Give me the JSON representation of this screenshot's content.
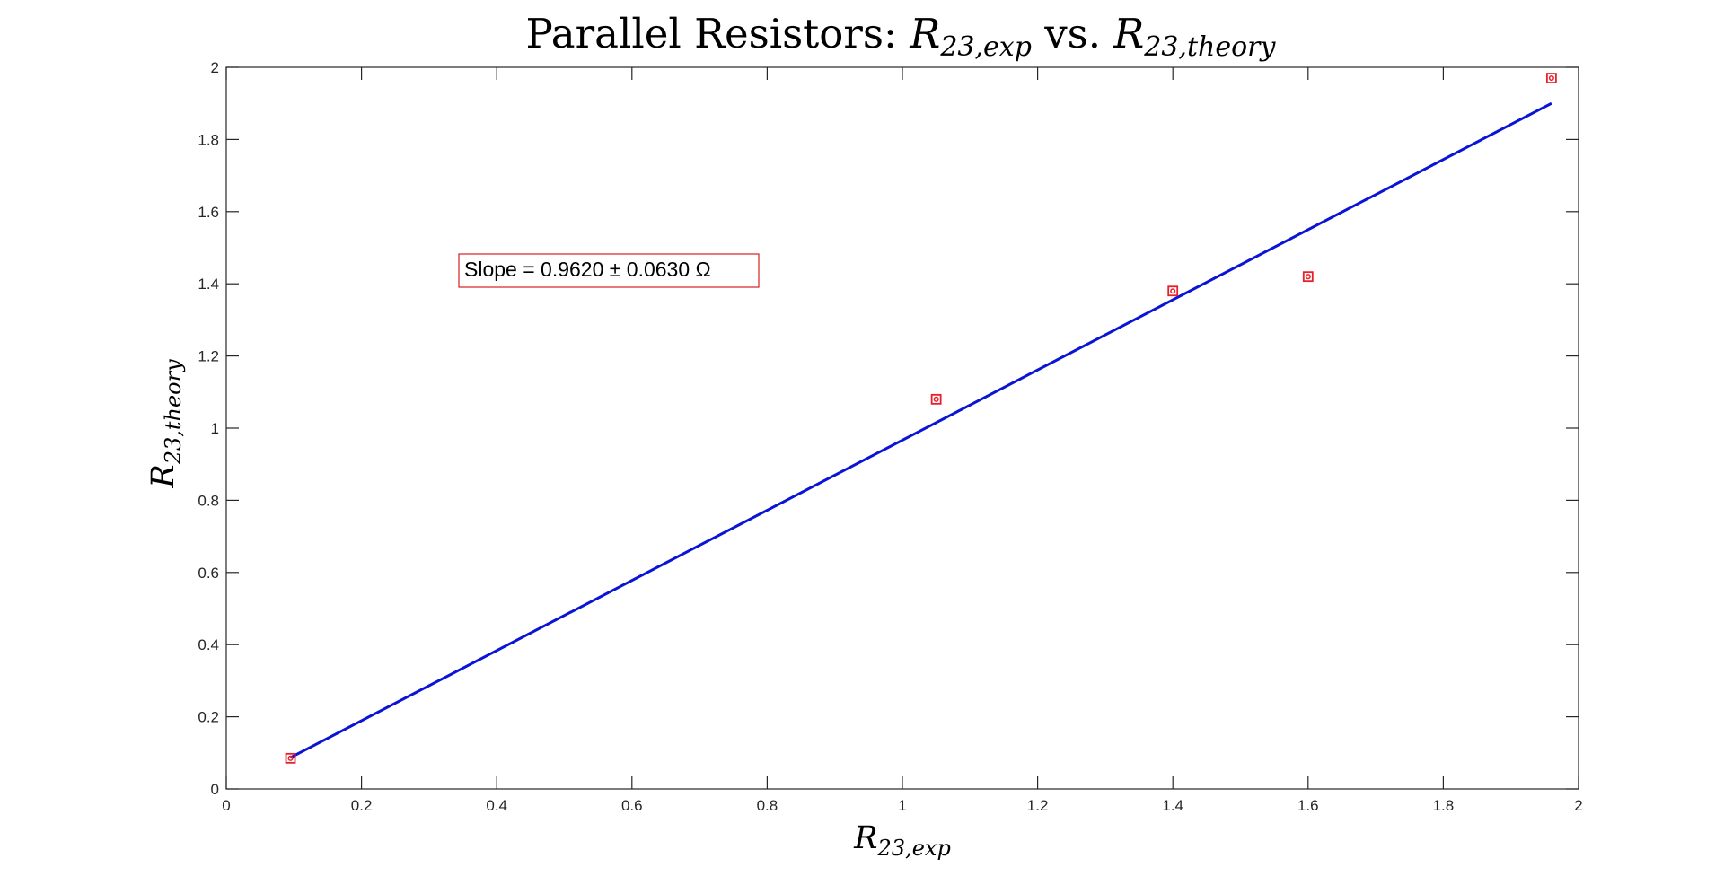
{
  "chart_data": {
    "type": "scatter",
    "title": {
      "prefix": "Parallel Resistors: ",
      "var1_base": "R",
      "var1_sub": "23,exp",
      "middle": " vs. ",
      "var2_base": "R",
      "var2_sub": "23,theory"
    },
    "xlabel": {
      "base": "R",
      "sub": "23,exp"
    },
    "ylabel": {
      "base": "R",
      "sub": "23,theory"
    },
    "xlim": [
      0,
      2
    ],
    "ylim": [
      0,
      2
    ],
    "xticks": [
      0,
      0.2,
      0.4,
      0.6,
      0.8,
      1,
      1.2,
      1.4,
      1.6,
      1.8,
      2
    ],
    "yticks": [
      0,
      0.2,
      0.4,
      0.6,
      0.8,
      1,
      1.2,
      1.4,
      1.6,
      1.8,
      2
    ],
    "xtick_labels": [
      "0",
      "0.2",
      "0.4",
      "0.6",
      "0.8",
      "1",
      "1.2",
      "1.4",
      "1.6",
      "1.8",
      "2"
    ],
    "ytick_labels": [
      "0",
      "0.2",
      "0.4",
      "0.6",
      "0.8",
      "1",
      "1.2",
      "1.4",
      "1.6",
      "1.8",
      "2"
    ],
    "grid": false,
    "series": [
      {
        "kind": "points",
        "marker": "square-with-circle",
        "color": "#e8202a",
        "x": [
          0.095,
          1.05,
          1.4,
          1.6,
          1.96
        ],
        "y": [
          0.085,
          1.08,
          1.38,
          1.42,
          1.97
        ]
      },
      {
        "kind": "fit-line",
        "color": "#0a14d4",
        "x": [
          0.095,
          1.96
        ],
        "y": [
          0.087,
          1.9
        ]
      }
    ],
    "annotation": {
      "text": "Slope =  0.9620 ± 0.0630 Ω",
      "border_color": "#d42020"
    }
  }
}
